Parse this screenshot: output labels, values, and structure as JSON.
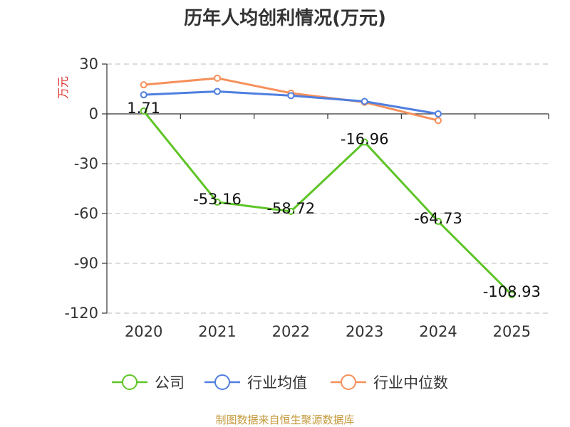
{
  "colors": {
    "company": "#5ec427",
    "industry_avg": "#4f7fe0",
    "industry_median": "#f5905a",
    "unit": "#e03030",
    "source": "#c49a3c",
    "grid": "#c8c8c8",
    "axis": "#333333"
  },
  "chart_data": {
    "type": "line",
    "title": "历年人均创利情况(万元)",
    "ylabel": "万元",
    "categories": [
      "2020",
      "2021",
      "2022",
      "2023",
      "2024",
      "2025"
    ],
    "yticks": [
      "30",
      "0",
      "-30",
      "-60",
      "-90",
      "-120"
    ],
    "ylim": [
      -120,
      30
    ],
    "grid": true,
    "legend_position": "bottom",
    "series": [
      {
        "key": "company",
        "name": "公司",
        "values": [
          1.71,
          -53.16,
          -58.72,
          -16.96,
          -64.73,
          -108.93
        ],
        "labels": [
          "1.71",
          "-53.16",
          "-58.72",
          "-16.96",
          "-64.73",
          "-108.93"
        ]
      },
      {
        "key": "industry_avg",
        "name": "行业均值",
        "values": [
          11.5,
          13.5,
          11.0,
          7.5,
          0.0,
          null
        ]
      },
      {
        "key": "industry_median",
        "name": "行业中位数",
        "values": [
          17.5,
          21.5,
          12.5,
          7.0,
          -4.0,
          null
        ]
      }
    ]
  },
  "footer": {
    "source": "制图数据来自恒生聚源数据库"
  }
}
